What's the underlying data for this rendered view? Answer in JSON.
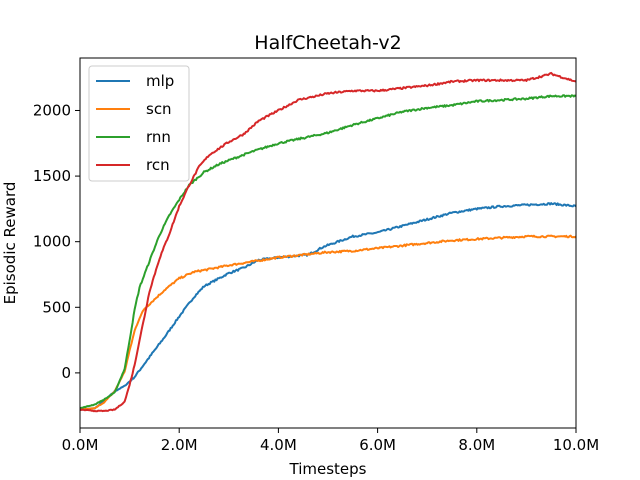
{
  "chart_data": {
    "type": "line",
    "title": "HalfCheetah-v2",
    "xlabel": "Timesteps",
    "ylabel": "Episodic Reward",
    "xlim": [
      0,
      10
    ],
    "ylim": [
      -420,
      2400
    ],
    "x_unit": "millions of timesteps",
    "xticks": [
      {
        "value": 0,
        "label": "0.0M"
      },
      {
        "value": 2,
        "label": "2.0M"
      },
      {
        "value": 4,
        "label": "4.0M"
      },
      {
        "value": 6,
        "label": "6.0M"
      },
      {
        "value": 8,
        "label": "8.0M"
      },
      {
        "value": 10,
        "label": "10.0M"
      }
    ],
    "yticks": [
      {
        "value": 0,
        "label": "0"
      },
      {
        "value": 500,
        "label": "500"
      },
      {
        "value": 1000,
        "label": "1000"
      },
      {
        "value": 1500,
        "label": "1500"
      },
      {
        "value": 2000,
        "label": "2000"
      }
    ],
    "grid": false,
    "legend_position": "top-left",
    "series": [
      {
        "name": "mlp",
        "color": "#1f77b4",
        "points": [
          [
            0,
            -280
          ],
          [
            0.3,
            -270
          ],
          [
            0.5,
            -210
          ],
          [
            0.7,
            -140
          ],
          [
            0.9,
            -100
          ],
          [
            1.1,
            -30
          ],
          [
            1.3,
            70
          ],
          [
            1.5,
            170
          ],
          [
            1.7,
            270
          ],
          [
            2.0,
            430
          ],
          [
            2.3,
            580
          ],
          [
            2.5,
            660
          ],
          [
            2.8,
            720
          ],
          [
            3.0,
            760
          ],
          [
            3.3,
            800
          ],
          [
            3.6,
            860
          ],
          [
            4.0,
            880
          ],
          [
            4.3,
            890
          ],
          [
            4.6,
            900
          ],
          [
            4.9,
            960
          ],
          [
            5.2,
            1000
          ],
          [
            5.5,
            1040
          ],
          [
            6.0,
            1070
          ],
          [
            6.5,
            1120
          ],
          [
            7.0,
            1170
          ],
          [
            7.5,
            1220
          ],
          [
            8.0,
            1250
          ],
          [
            8.5,
            1270
          ],
          [
            9.0,
            1280
          ],
          [
            9.5,
            1290
          ],
          [
            10.0,
            1270
          ]
        ]
      },
      {
        "name": "scn",
        "color": "#ff7f0e",
        "points": [
          [
            0,
            -280
          ],
          [
            0.3,
            -270
          ],
          [
            0.5,
            -220
          ],
          [
            0.7,
            -140
          ],
          [
            0.9,
            10
          ],
          [
            1.0,
            170
          ],
          [
            1.1,
            320
          ],
          [
            1.2,
            420
          ],
          [
            1.3,
            490
          ],
          [
            1.5,
            560
          ],
          [
            1.7,
            630
          ],
          [
            2.0,
            720
          ],
          [
            2.3,
            770
          ],
          [
            2.6,
            790
          ],
          [
            3.0,
            820
          ],
          [
            3.5,
            850
          ],
          [
            4.0,
            880
          ],
          [
            4.5,
            900
          ],
          [
            5.0,
            920
          ],
          [
            5.5,
            930
          ],
          [
            6.0,
            950
          ],
          [
            6.5,
            970
          ],
          [
            7.0,
            990
          ],
          [
            7.5,
            1010
          ],
          [
            8.0,
            1020
          ],
          [
            8.5,
            1030
          ],
          [
            9.0,
            1040
          ],
          [
            9.5,
            1040
          ],
          [
            10.0,
            1040
          ]
        ]
      },
      {
        "name": "rnn",
        "color": "#2ca02c",
        "points": [
          [
            0,
            -270
          ],
          [
            0.3,
            -240
          ],
          [
            0.5,
            -200
          ],
          [
            0.7,
            -150
          ],
          [
            0.9,
            30
          ],
          [
            1.0,
            250
          ],
          [
            1.1,
            480
          ],
          [
            1.2,
            650
          ],
          [
            1.4,
            850
          ],
          [
            1.6,
            1050
          ],
          [
            1.8,
            1200
          ],
          [
            2.0,
            1320
          ],
          [
            2.2,
            1430
          ],
          [
            2.5,
            1530
          ],
          [
            2.8,
            1590
          ],
          [
            3.0,
            1620
          ],
          [
            3.5,
            1690
          ],
          [
            4.0,
            1750
          ],
          [
            4.5,
            1790
          ],
          [
            5.0,
            1830
          ],
          [
            5.5,
            1890
          ],
          [
            6.0,
            1940
          ],
          [
            6.5,
            1990
          ],
          [
            7.0,
            2020
          ],
          [
            7.5,
            2040
          ],
          [
            8.0,
            2070
          ],
          [
            8.5,
            2080
          ],
          [
            9.0,
            2090
          ],
          [
            9.5,
            2110
          ],
          [
            10.0,
            2110
          ]
        ]
      },
      {
        "name": "rcn",
        "color": "#d62728",
        "points": [
          [
            0,
            -280
          ],
          [
            0.3,
            -290
          ],
          [
            0.5,
            -290
          ],
          [
            0.7,
            -280
          ],
          [
            0.9,
            -220
          ],
          [
            1.0,
            -90
          ],
          [
            1.1,
            60
          ],
          [
            1.2,
            250
          ],
          [
            1.3,
            430
          ],
          [
            1.4,
            620
          ],
          [
            1.6,
            870
          ],
          [
            1.8,
            1060
          ],
          [
            2.0,
            1270
          ],
          [
            2.2,
            1430
          ],
          [
            2.4,
            1570
          ],
          [
            2.6,
            1660
          ],
          [
            3.0,
            1760
          ],
          [
            3.3,
            1820
          ],
          [
            3.6,
            1920
          ],
          [
            4.0,
            2000
          ],
          [
            4.4,
            2080
          ],
          [
            5.0,
            2130
          ],
          [
            5.5,
            2150
          ],
          [
            6.0,
            2150
          ],
          [
            6.5,
            2170
          ],
          [
            7.0,
            2190
          ],
          [
            7.5,
            2220
          ],
          [
            8.0,
            2230
          ],
          [
            8.5,
            2230
          ],
          [
            9.0,
            2230
          ],
          [
            9.5,
            2280
          ],
          [
            10.0,
            2220
          ]
        ]
      }
    ]
  }
}
